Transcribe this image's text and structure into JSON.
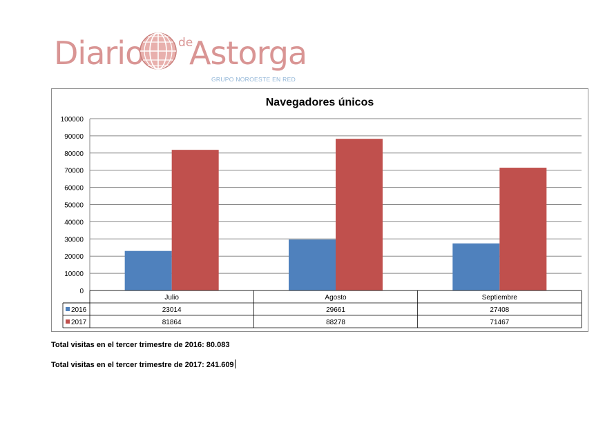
{
  "logo": {
    "word1": "Diario",
    "de": "de",
    "word2": "Astorga",
    "subtitle": "GRUPO NOROESTE EN RED",
    "color": "#d99594",
    "subtitle_color": "#8fb4d6",
    "icon": "globe-icon"
  },
  "chart_data": {
    "type": "bar",
    "title": "Navegadores únicos",
    "categories": [
      "Julio",
      "Agosto",
      "Septiembre"
    ],
    "series": [
      {
        "name": "2016",
        "color": "#4f81bd",
        "values": [
          23014,
          29661,
          27408
        ]
      },
      {
        "name": "2017",
        "color": "#c0504d",
        "values": [
          81864,
          88278,
          71467
        ]
      }
    ],
    "ylim": [
      0,
      100000
    ],
    "yticks": [
      0,
      10000,
      20000,
      30000,
      40000,
      50000,
      60000,
      70000,
      80000,
      90000,
      100000
    ],
    "grid": true,
    "legend": "data-table",
    "xlabel": "",
    "ylabel": ""
  },
  "totals": {
    "line2016": "Total visitas en el tercer trimestre de 2016: 80.083",
    "line2017": "Total visitas en el tercer trimestre de 2017: 241.609"
  }
}
